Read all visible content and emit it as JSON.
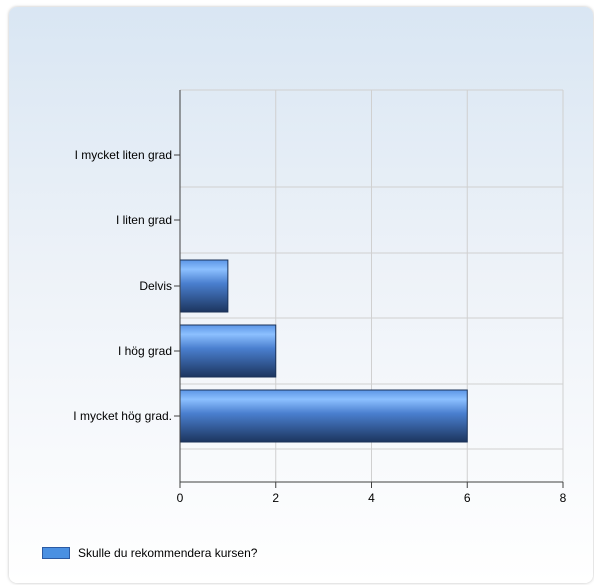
{
  "chart_data": {
    "type": "bar",
    "orientation": "horizontal",
    "title": "",
    "xlabel": "",
    "ylabel": "",
    "categories": [
      "I mycket liten grad",
      "I liten grad",
      "Delvis",
      "I hög grad",
      "I mycket hög grad."
    ],
    "series": [
      {
        "name": "Skulle du rekommendera kursen?",
        "values": [
          0,
          0,
          1,
          2,
          6
        ]
      }
    ],
    "xlim": [
      0,
      8
    ],
    "x_ticks": [
      0,
      2,
      4,
      6,
      8
    ],
    "grid": true,
    "legend_position": "bottom-left",
    "colors": {
      "bar_top": "#6aa6ff",
      "bar_mid": "#3a6fbf",
      "bar_bottom": "#1c3a6e",
      "grid": "#d0d0d0",
      "axis": "#404040",
      "legend_swatch": "#4a90e2"
    }
  }
}
